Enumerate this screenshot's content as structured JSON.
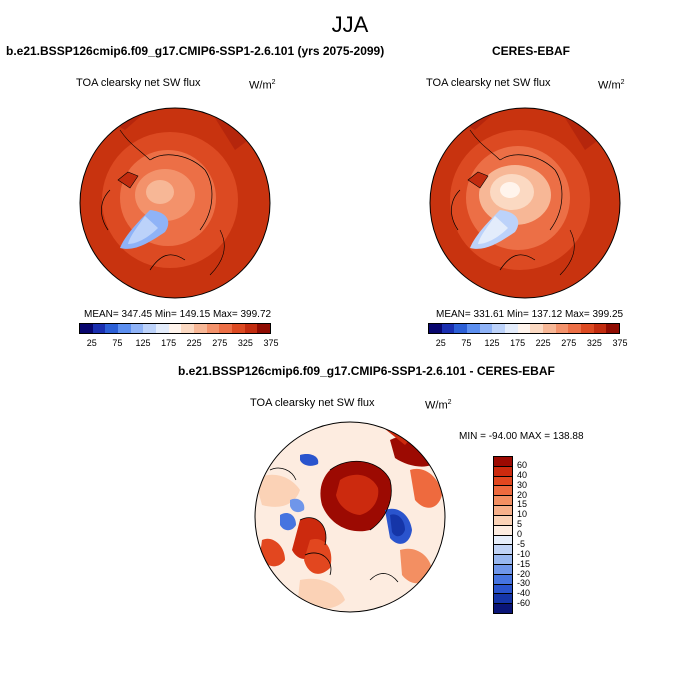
{
  "figure": {
    "season": "JJA",
    "panels": [
      {
        "title": "b.e21.BSSP126cmip6.f09_g17.CMIP6-SSP1-2.6.101 (yrs 2075-2099)",
        "variable": "TOA clearsky net SW flux",
        "unit_base": "W/m",
        "unit_exp": "2",
        "stats": "MEAN= 347.45  Min= 149.15  Max= 399.72"
      },
      {
        "title": "CERES-EBAF",
        "variable": "TOA clearsky net SW flux",
        "unit_base": "W/m",
        "unit_exp": "2",
        "stats": "MEAN= 331.61  Min= 137.12  Max= 399.25"
      },
      {
        "title": "b.e21.BSSP126cmip6.f09_g17.CMIP6-SSP1-2.6.101 - CERES-EBAF",
        "variable": "TOA clearsky net SW flux",
        "unit_base": "W/m",
        "unit_exp": "2",
        "stats": "MIN = -94.00 MAX = 138.88"
      }
    ],
    "colorbar_main": {
      "ticks": [
        "25",
        "75",
        "125",
        "175",
        "225",
        "275",
        "325",
        "375"
      ],
      "colors": [
        "#08066e",
        "#1a2fb0",
        "#2c5fd6",
        "#5c8ff0",
        "#8fb3f7",
        "#bcd2fa",
        "#e3ecfb",
        "#fff4ec",
        "#fbd9c2",
        "#f7b796",
        "#f3926b",
        "#ec6f46",
        "#dc4a22",
        "#c22c0f",
        "#8f0c02"
      ]
    },
    "colorbar_diff": {
      "ticks": [
        "60",
        "40",
        "30",
        "20",
        "15",
        "10",
        "5",
        "0",
        "-5",
        "-10",
        "-15",
        "-20",
        "-30",
        "-40",
        "-60"
      ],
      "colors": [
        "#9c0a02",
        "#cc2a0e",
        "#e2471f",
        "#ee6a3e",
        "#f38f62",
        "#f7b08a",
        "#fbd2b6",
        "#fdece0",
        "#e6eefb",
        "#c0d3f6",
        "#98b7f0",
        "#6f96ea",
        "#4674e0",
        "#2a54cd",
        "#1535a8",
        "#0a1577"
      ]
    }
  }
}
